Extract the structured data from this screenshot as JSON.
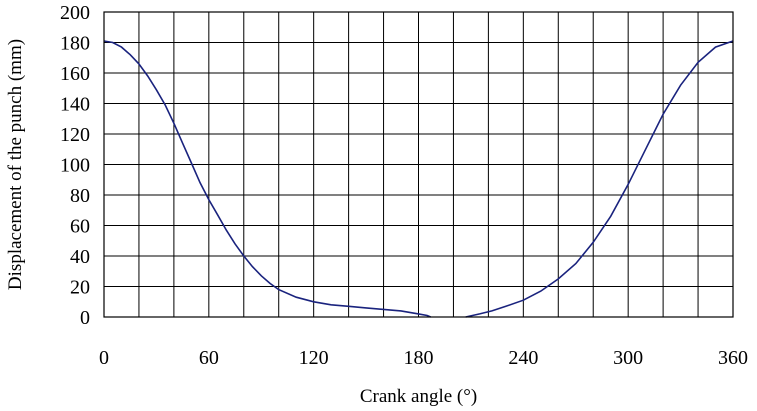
{
  "chart_data": {
    "type": "line",
    "title": "",
    "xlabel": "Crank angle (°)",
    "ylabel": "Displacement of the punch (mm)",
    "xlim": [
      0,
      360
    ],
    "ylim": [
      0,
      200
    ],
    "xticks": [
      0,
      60,
      120,
      180,
      240,
      300,
      360
    ],
    "yticks": [
      0,
      20,
      40,
      60,
      80,
      100,
      120,
      140,
      160,
      180,
      200
    ],
    "grid": true,
    "vertical_gridlines_every": 20,
    "legend": "none",
    "colors": {
      "line": "#1a237e",
      "grid": "#000000"
    },
    "series": [
      {
        "segments": [
          [
            [
              0,
              181
            ],
            [
              5,
              180
            ],
            [
              10,
              177
            ],
            [
              15,
              172
            ],
            [
              20,
              166
            ],
            [
              25,
              158
            ],
            [
              30,
              149
            ],
            [
              35,
              139
            ],
            [
              40,
              127
            ],
            [
              45,
              114
            ],
            [
              50,
              101
            ],
            [
              55,
              88
            ],
            [
              60,
              77
            ],
            [
              65,
              67
            ],
            [
              70,
              57
            ],
            [
              75,
              48
            ],
            [
              80,
              40
            ],
            [
              85,
              33
            ],
            [
              90,
              27
            ],
            [
              95,
              22
            ],
            [
              100,
              18
            ],
            [
              110,
              13
            ],
            [
              120,
              10
            ],
            [
              130,
              8
            ],
            [
              140,
              7
            ],
            [
              150,
              6
            ],
            [
              160,
              5
            ],
            [
              170,
              4
            ],
            [
              180,
              2
            ],
            [
              185,
              1
            ],
            [
              187,
              0
            ]
          ],
          [
            [
              207,
              0
            ],
            [
              215,
              2
            ],
            [
              222,
              4
            ],
            [
              230,
              7
            ],
            [
              240,
              11
            ],
            [
              250,
              17
            ],
            [
              260,
              25
            ],
            [
              270,
              35
            ],
            [
              280,
              49
            ],
            [
              290,
              66
            ],
            [
              300,
              87
            ],
            [
              310,
              110
            ],
            [
              320,
              133
            ],
            [
              330,
              152
            ],
            [
              340,
              167
            ],
            [
              350,
              177
            ],
            [
              360,
              181
            ]
          ]
        ]
      }
    ]
  }
}
